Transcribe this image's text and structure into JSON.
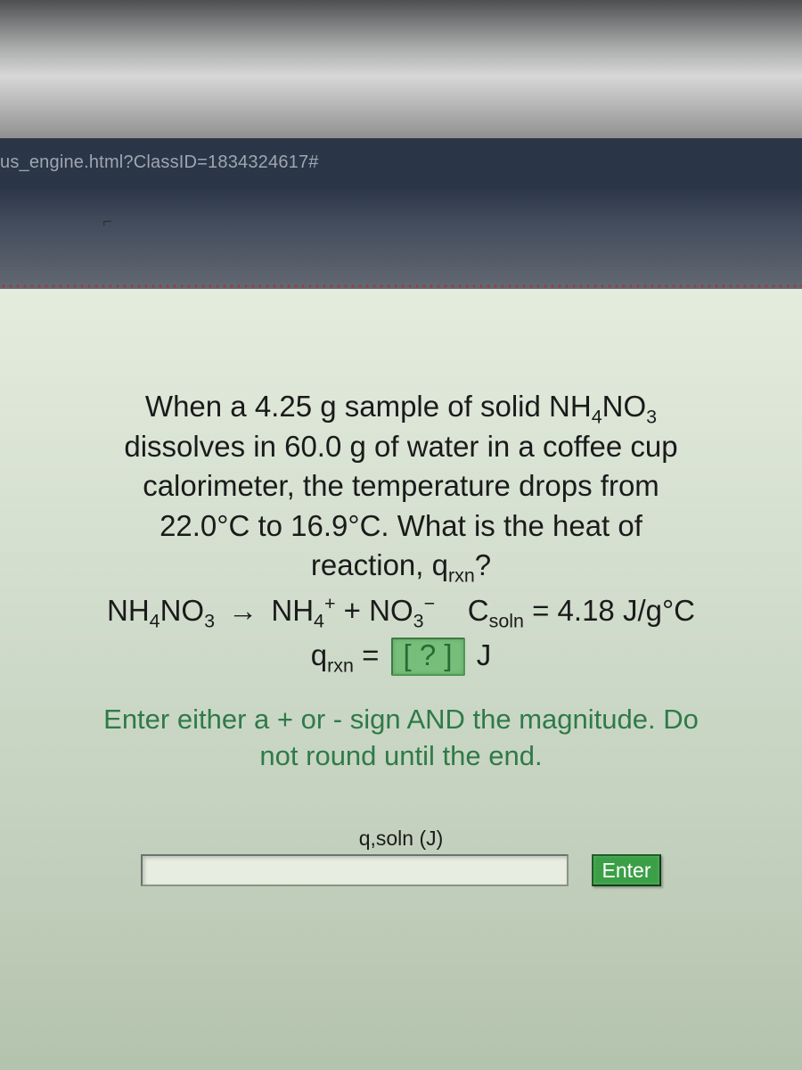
{
  "browser": {
    "url_fragment": "us_engine.html?ClassID=1834324617#"
  },
  "problem": {
    "line1": "When a 4.25 g sample of solid NH",
    "line1_sub": "4",
    "line1_cont": "NO",
    "line1_sub2": "3",
    "line2": "dissolves in 60.0 g of water in a coffee cup",
    "line3": "calorimeter, the temperature drops from",
    "line4": "22.0°C to 16.9°C. What is the heat of",
    "line5": "reaction, q",
    "line5_sub": "rxn",
    "line5_end": "?",
    "equation": {
      "lhs": "NH",
      "lhs_s1": "4",
      "lhs_c1": "NO",
      "lhs_s2": "3",
      "arrow": "→",
      "r1": "NH",
      "r1_sub": "4",
      "r1_sup": "+",
      "plus": " + ",
      "r2": "NO",
      "r2_sub": "3",
      "r2_sup": "−",
      "csoln_label": "C",
      "csoln_sub": "soln",
      "csoln_val": " = 4.18 J/g°C"
    },
    "qrxn": {
      "q": "q",
      "sub": "rxn",
      "eq": " = ",
      "box": "[ ? ]",
      "unit": " J"
    },
    "instruction_l1": "Enter either a + or - sign AND the magnitude. Do",
    "instruction_l2": "not round until the end."
  },
  "answer": {
    "label": "q,soln (J)",
    "value": "",
    "placeholder": "",
    "button": "Enter"
  },
  "style": {
    "panel_bg_top": "#e4ecde",
    "panel_bg_bottom": "#b3c3ad",
    "instruction_color": "#2e7a49",
    "answer_box_bg": "#77be7b",
    "enter_btn_bg": "#3a9f46",
    "urlbar_bg": "#2a3547",
    "urlbar_fg": "#9fa6b1",
    "fontsize_body": 33,
    "fontsize_instruction": 31,
    "fontsize_label": 23
  }
}
